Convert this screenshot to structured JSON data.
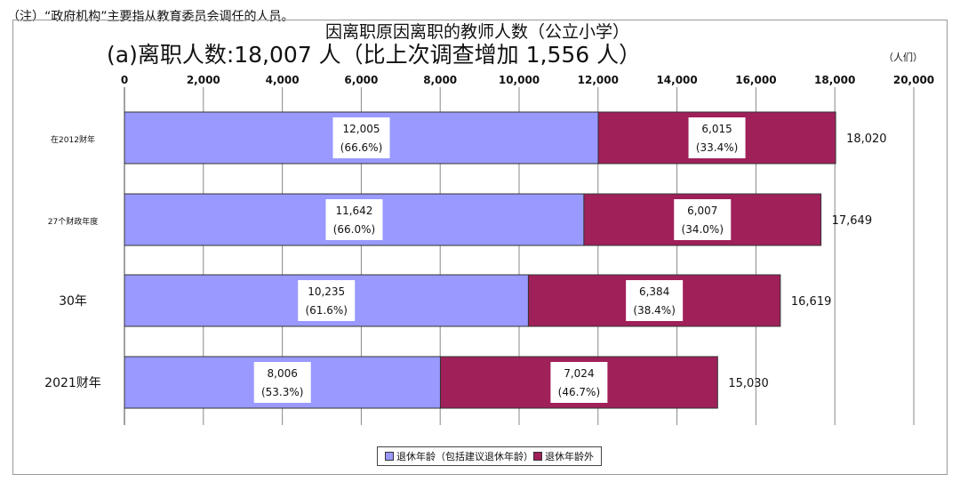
{
  "note": "（注）“政府机构”主要指从教育委员会调任的人员。",
  "unit_label": "（人们）",
  "colors": {
    "retirement": "#9999ff",
    "other": "#a0205a",
    "grid": "#888888",
    "axis": "#444444"
  },
  "chart_data": {
    "type": "bar",
    "orientation": "horizontal",
    "stacked": true,
    "title": "因离职原因离职的教师人数（公立小学）",
    "subtitle": "(a)离职人数:18,007 人（比上次调查增加 1,556 人）",
    "categories": [
      "在2012财年",
      "27个财政年度",
      "30年",
      "2021财年"
    ],
    "series": [
      {
        "name": "退休年龄（包括建议退休年龄）",
        "values": [
          12005,
          11642,
          10235,
          8006
        ],
        "labels": [
          "(66.6%)",
          "(66.0%)",
          "(61.6%)",
          "(53.3%)"
        ]
      },
      {
        "name": "退休年龄外",
        "values": [
          6015,
          6007,
          6384,
          7024
        ],
        "labels": [
          "(33.4%)",
          "(34.0%)",
          "(38.4%)",
          "(46.7%)"
        ]
      }
    ],
    "totals": [
      "18,020",
      "17,649",
      "16,619",
      "15,030"
    ],
    "xlim": [
      0,
      20000
    ],
    "xticks": [
      0,
      2000,
      4000,
      6000,
      8000,
      10000,
      12000,
      14000,
      16000,
      18000,
      20000
    ],
    "xtick_labels": [
      "0",
      "2,000",
      "4,000",
      "6,000",
      "8,000",
      "10,000",
      "12,000",
      "14,000",
      "16,000",
      "18,000",
      "20,000"
    ],
    "grid": true,
    "legend_position": "bottom"
  }
}
